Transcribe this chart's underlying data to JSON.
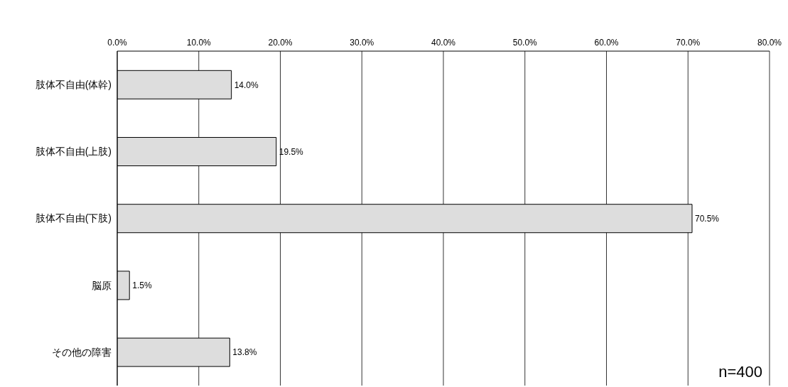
{
  "chart_data": {
    "type": "bar",
    "orientation": "horizontal",
    "categories": [
      "肢体不自由(体幹)",
      "肢体不自由(上肢)",
      "肢体不自由(下肢)",
      "脳原",
      "その他の障害"
    ],
    "values": [
      14.0,
      19.5,
      70.5,
      1.5,
      13.8
    ],
    "value_labels": [
      "14.0%",
      "19.5%",
      "70.5%",
      "1.5%",
      "13.8%"
    ],
    "color": "#dddddd",
    "xlim": [
      0,
      80
    ],
    "xticks": [
      {
        "value": 0,
        "label": "0.0%"
      },
      {
        "value": 10,
        "label": "10.0%"
      },
      {
        "value": 20,
        "label": "20.0%"
      },
      {
        "value": 30,
        "label": "30.0%"
      },
      {
        "value": 40,
        "label": "40.0%"
      },
      {
        "value": 50,
        "label": "50.0%"
      },
      {
        "value": 60,
        "label": "60.0%"
      },
      {
        "value": 70,
        "label": "70.0%"
      },
      {
        "value": 80,
        "label": "80.0%"
      }
    ],
    "grid": "x",
    "annotations": [
      "n=400"
    ]
  }
}
